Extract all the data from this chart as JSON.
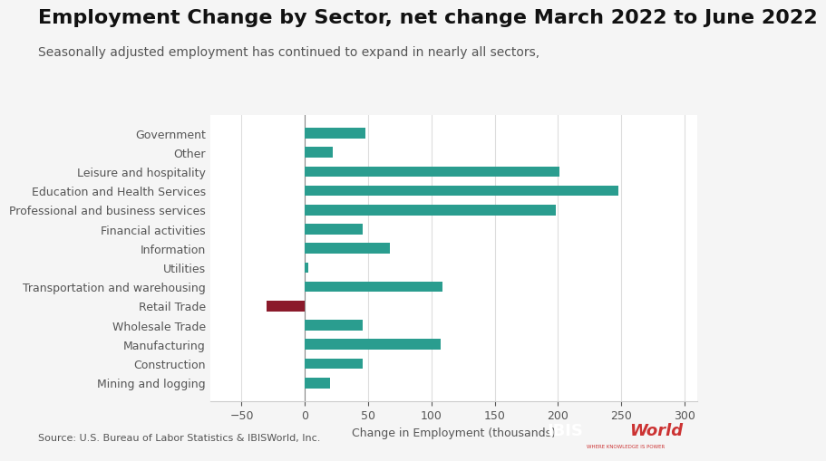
{
  "title": "Employment Change by Sector, net change March 2022 to June 2022",
  "subtitle": "Seasonally adjusted employment has continued to expand in nearly all sectors,",
  "xlabel": "Change in Employment (thousands)",
  "source": "Source: U.S. Bureau of Labor Statistics & IBISWorld, Inc.",
  "categories": [
    "Mining and logging",
    "Construction",
    "Manufacturing",
    "Wholesale Trade",
    "Retail Trade",
    "Transportation and warehousing",
    "Utilities",
    "Information",
    "Financial activities",
    "Professional and business services",
    "Education and Health Services",
    "Leisure and hospitality",
    "Other",
    "Government"
  ],
  "values": [
    20,
    46,
    107,
    46,
    -30,
    109,
    3,
    67,
    46,
    198,
    248,
    201,
    22,
    48
  ],
  "bar_colors": [
    "#2a9d8f",
    "#2a9d8f",
    "#2a9d8f",
    "#2a9d8f",
    "#8b1a2b",
    "#2a9d8f",
    "#2a9d8f",
    "#2a9d8f",
    "#2a9d8f",
    "#2a9d8f",
    "#2a9d8f",
    "#2a9d8f",
    "#2a9d8f",
    "#2a9d8f"
  ],
  "xlim": [
    -75,
    310
  ],
  "xticks": [
    -50,
    0,
    50,
    100,
    150,
    200,
    250,
    300
  ],
  "background_color": "#f5f5f5",
  "plot_bg_color": "#ffffff",
  "title_fontsize": 16,
  "subtitle_fontsize": 10,
  "label_fontsize": 9,
  "tick_fontsize": 9,
  "bar_height": 0.55
}
